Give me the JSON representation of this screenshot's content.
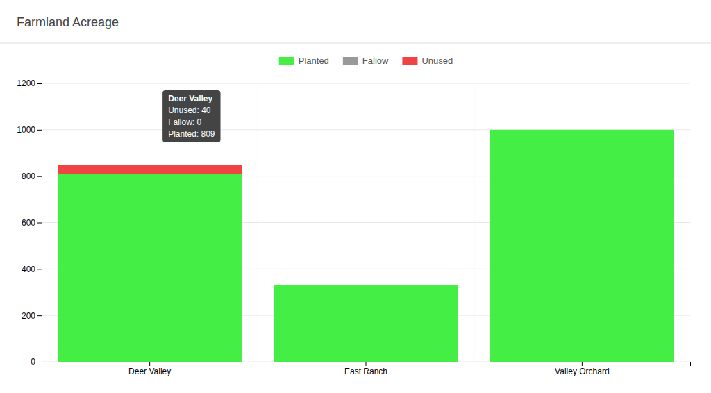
{
  "chart_data": {
    "type": "bar",
    "title": "Farmland Acreage",
    "categories": [
      "Deer Valley",
      "East Ranch",
      "Valley Orchard"
    ],
    "series": [
      {
        "name": "Planted",
        "color": "#44ee44",
        "values": [
          809,
          330,
          1000
        ]
      },
      {
        "name": "Fallow",
        "color": "#999999",
        "values": [
          0,
          0,
          0
        ]
      },
      {
        "name": "Unused",
        "color": "#ee4444",
        "values": [
          40,
          0,
          0
        ]
      }
    ],
    "stacked": true,
    "ylim": [
      0,
      1200
    ],
    "yticks": [
      0,
      200,
      400,
      600,
      800,
      1000,
      1200
    ],
    "grid": true,
    "legend": "top",
    "annotations": [
      "Deer Valley",
      "Unused: 40",
      "Fallow: 0",
      "Planted: 809"
    ]
  }
}
